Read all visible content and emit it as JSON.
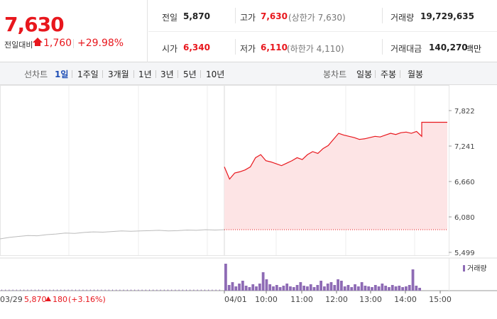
{
  "quote": {
    "current_price": "7,630",
    "change_label": "전일대비",
    "change_abs": "1,760",
    "change_pct": "+29.98%"
  },
  "stats": {
    "prev_close_label": "전일",
    "prev_close": "5,870",
    "high_label": "고가",
    "high": "7,630",
    "high_sub": "(상한가 7,630)",
    "volume_label": "거래량",
    "volume": "19,729,635",
    "open_label": "시가",
    "open": "6,340",
    "low_label": "저가",
    "low": "6,110",
    "low_sub": "(하한가 4,110)",
    "value_label": "거래대금",
    "value": "140,270",
    "value_unit": "백만"
  },
  "periods": {
    "line_label": "선차트",
    "line_items": [
      "1일",
      "1주일",
      "3개월",
      "1년",
      "3년",
      "5년",
      "10년"
    ],
    "active_index": 0,
    "candle_label": "봉차트",
    "candle_items": [
      "일봉",
      "주봉",
      "월봉"
    ]
  },
  "colors": {
    "up": "#e8171d",
    "accent": "#1d4db5",
    "volume": "#8e6bb5",
    "prev_line": "#bbbbbb"
  },
  "chart_data": {
    "type": "line",
    "y_ticks": [
      "7,822",
      "7,241",
      "6,660",
      "6,080",
      "5,499"
    ],
    "ylim": [
      5499,
      7822
    ],
    "x_ticks": [
      "04/01",
      "10:00",
      "11:00",
      "12:00",
      "13:00",
      "14:00",
      "15:00"
    ],
    "volume_legend": "거래량",
    "prev_day": {
      "date": "03/29",
      "close": "5,870",
      "change": "180",
      "change_pct": "(+3.16%)",
      "series": [
        5720,
        5745,
        5760,
        5775,
        5770,
        5790,
        5800,
        5815,
        5810,
        5825,
        5835,
        5830,
        5840,
        5850,
        5845,
        5850,
        5855,
        5860,
        5850,
        5855,
        5865,
        5860,
        5870,
        5865,
        5870
      ]
    },
    "today": {
      "reference_close": 5870,
      "series": [
        6900,
        6700,
        6800,
        6820,
        6850,
        6900,
        7050,
        7100,
        7000,
        6980,
        6950,
        6920,
        6960,
        7000,
        7050,
        7020,
        7100,
        7150,
        7120,
        7200,
        7250,
        7350,
        7450,
        7420,
        7400,
        7380,
        7350,
        7360,
        7380,
        7400,
        7390,
        7420,
        7450,
        7430,
        7460,
        7470,
        7450,
        7480,
        7400,
        7630,
        7630,
        7630,
        7630,
        7630,
        7630
      ]
    }
  }
}
